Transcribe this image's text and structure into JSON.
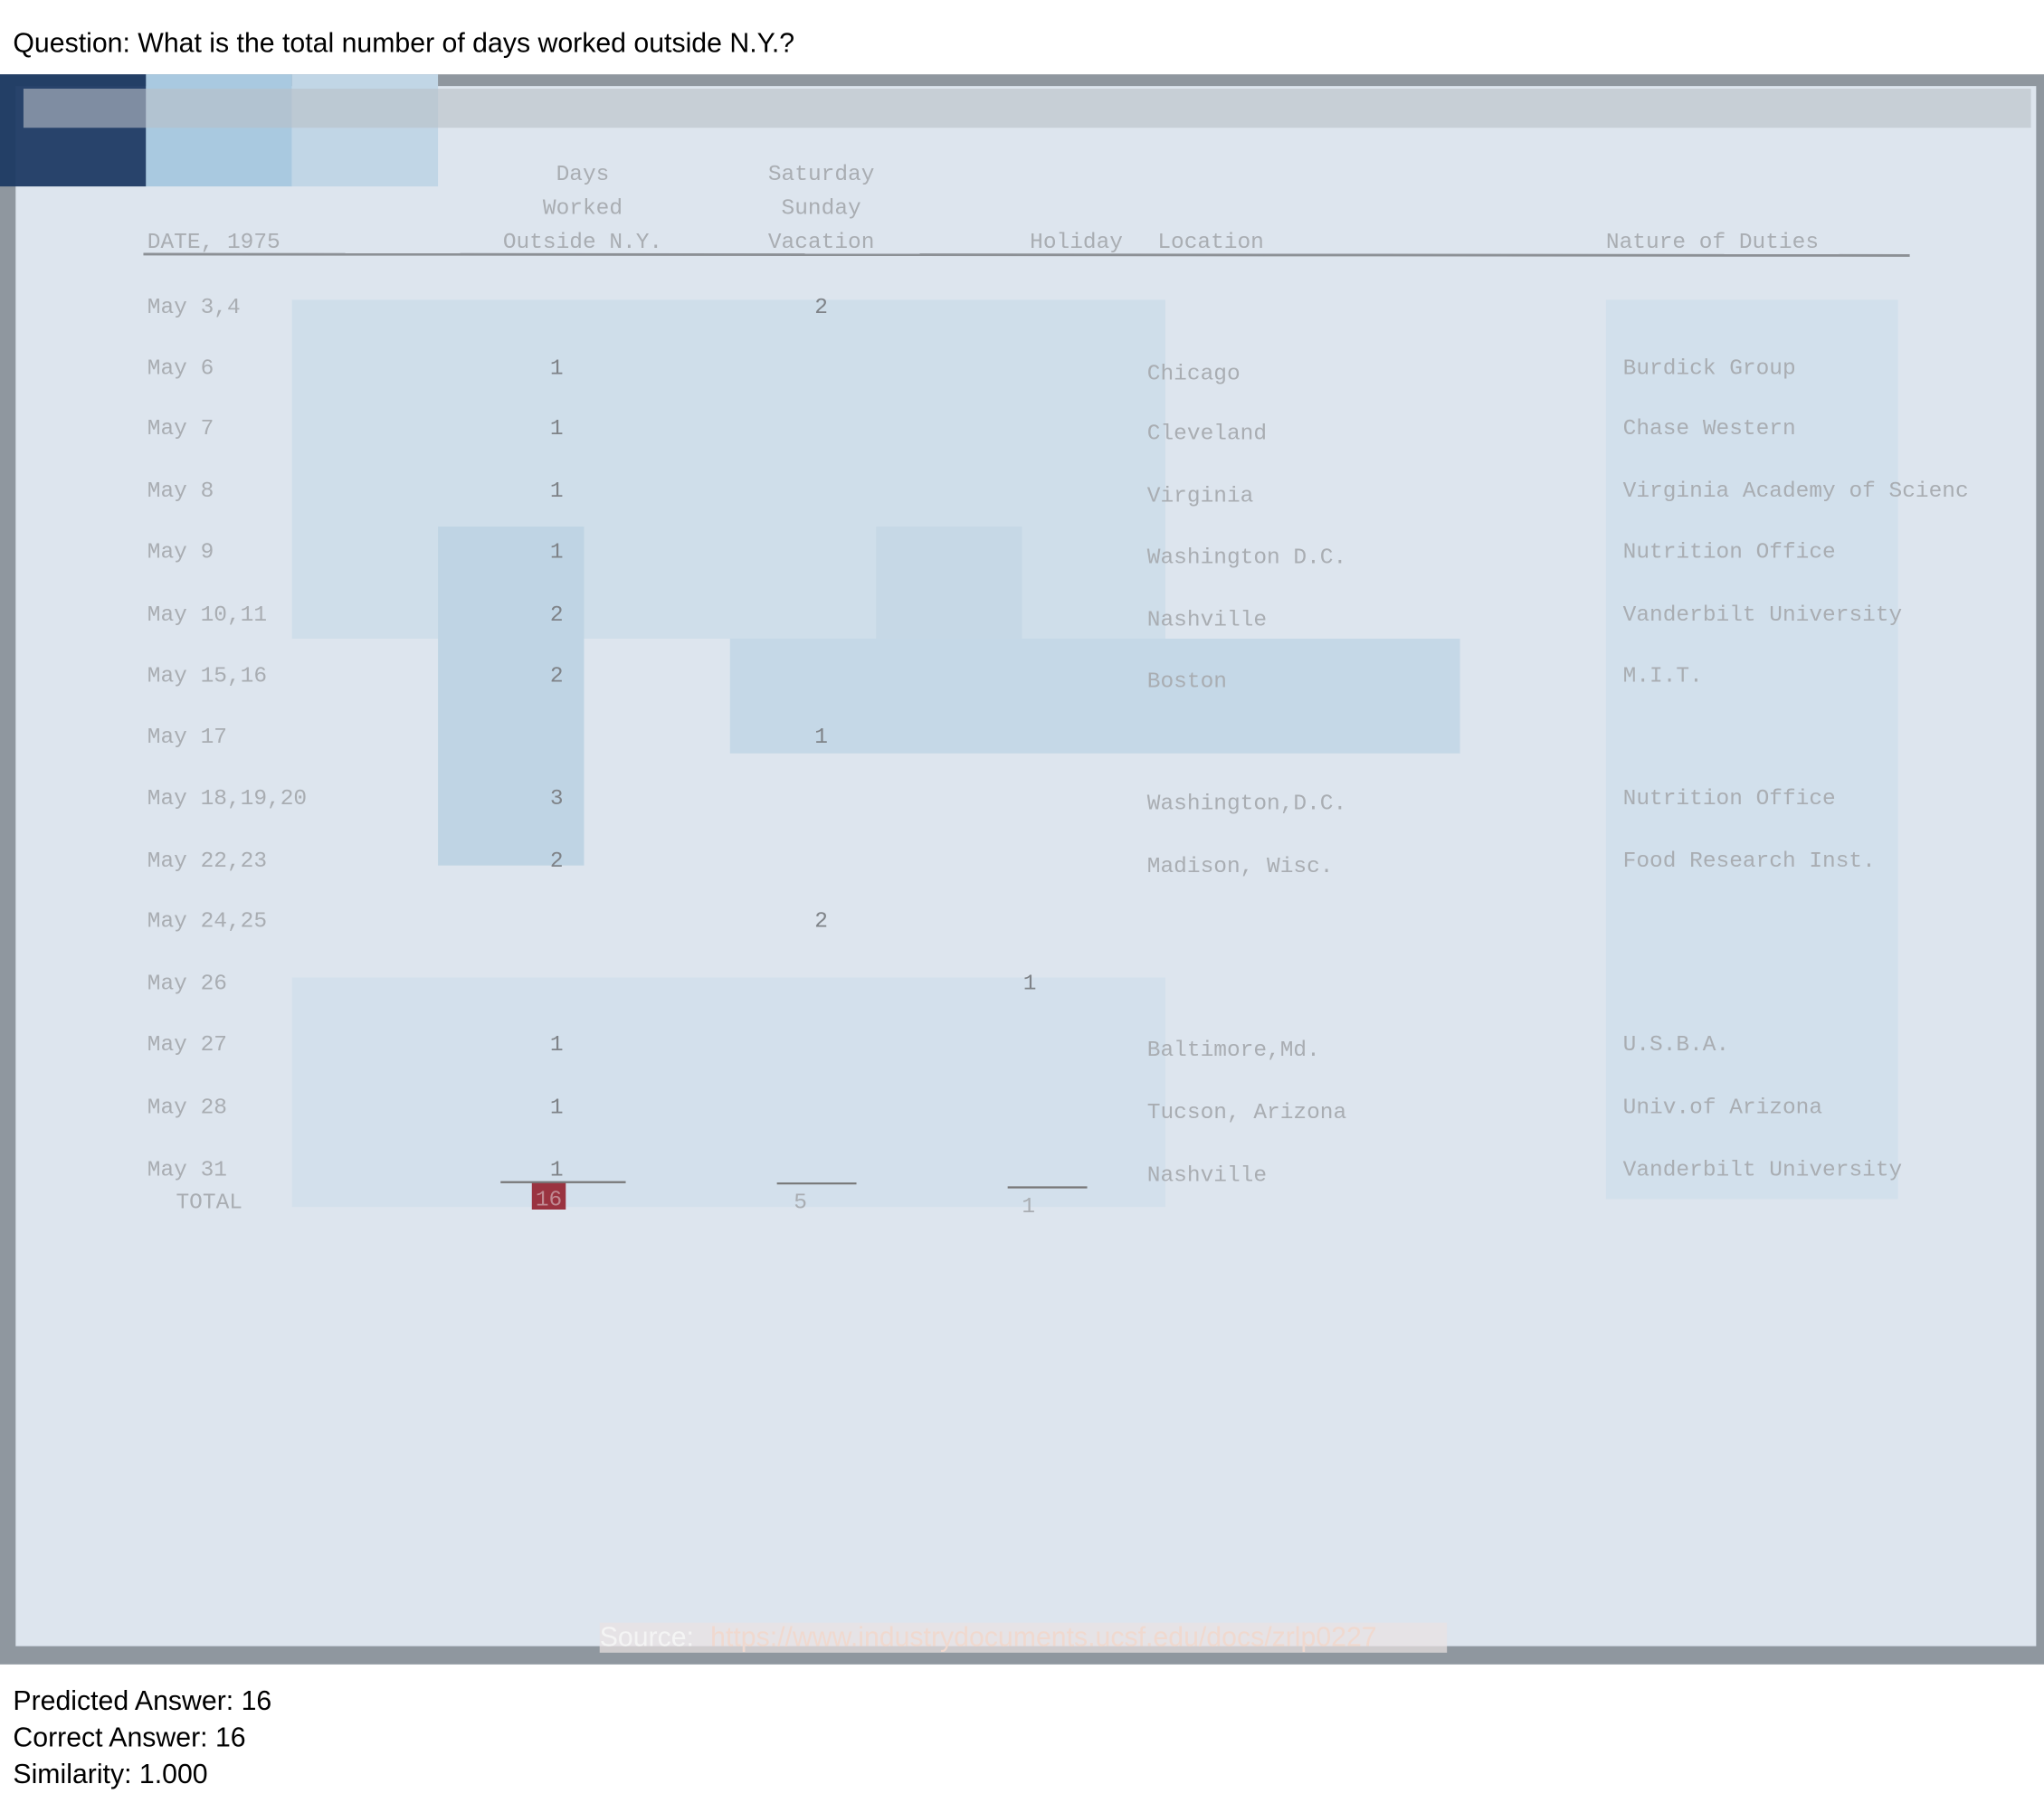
{
  "question": "Question: What is the total number of days worked outside N.Y.?",
  "document": {
    "headers": {
      "date": [
        "DATE, 1975"
      ],
      "days": [
        "Days",
        "Worked",
        "Outside N.Y."
      ],
      "weekend": [
        "Saturday",
        "Sunday",
        "Vacation"
      ],
      "holiday": [
        "Holiday"
      ],
      "location": [
        "Location"
      ],
      "duties": [
        "Nature of Duties"
      ]
    },
    "rows": [
      {
        "date": "May 3,4",
        "weekend": 2
      },
      {
        "date": "May 6",
        "days": 1,
        "location": "Chicago",
        "duties": "Burdick Group"
      },
      {
        "date": "May 7",
        "days": 1,
        "location": "Cleveland",
        "duties": "Chase Western"
      },
      {
        "date": "May 8",
        "days": 1,
        "location": "Virginia",
        "duties": "Virginia Academy of Scienc"
      },
      {
        "date": "May 9",
        "days": 1,
        "location": "Washington D.C.",
        "duties": "Nutrition Office"
      },
      {
        "date": "May 10,11",
        "days": 2,
        "location": "Nashville",
        "duties": "Vanderbilt University"
      },
      {
        "date": "May 15,16",
        "days": 2,
        "location": "Boston",
        "duties": "M.I.T."
      },
      {
        "date": "May 17",
        "weekend": 1
      },
      {
        "date": "May 18,19,20",
        "days": 3,
        "location": "Washington,D.C.",
        "duties": "Nutrition Office"
      },
      {
        "date": "May 22,23",
        "days": 2,
        "location": "Madison, Wisc.",
        "duties": "Food Research Inst."
      },
      {
        "date": "May 24,25",
        "weekend": 2
      },
      {
        "date": "May 26",
        "holiday": 1
      },
      {
        "date": "May 27",
        "days": 1,
        "location": "Baltimore,Md.",
        "duties": "U.S.B.A."
      },
      {
        "date": "May 28",
        "days": 1,
        "location": "Tucson, Arizona",
        "duties": "Univ.of Arizona"
      },
      {
        "date": "May 31",
        "days": 1,
        "location": "Nashville",
        "duties": "Vanderbilt University"
      }
    ],
    "total": {
      "label": "TOTAL",
      "days": 16,
      "weekend": 5,
      "holiday": 1
    },
    "source": {
      "label": "Source:",
      "url": "https://www.industrydocuments.ucsf.edu/docs/zrlp0227"
    }
  },
  "results": {
    "predicted": "Predicted Answer: 16",
    "correct": "Correct Answer: 16",
    "similarity": "Similarity: 1.000"
  }
}
